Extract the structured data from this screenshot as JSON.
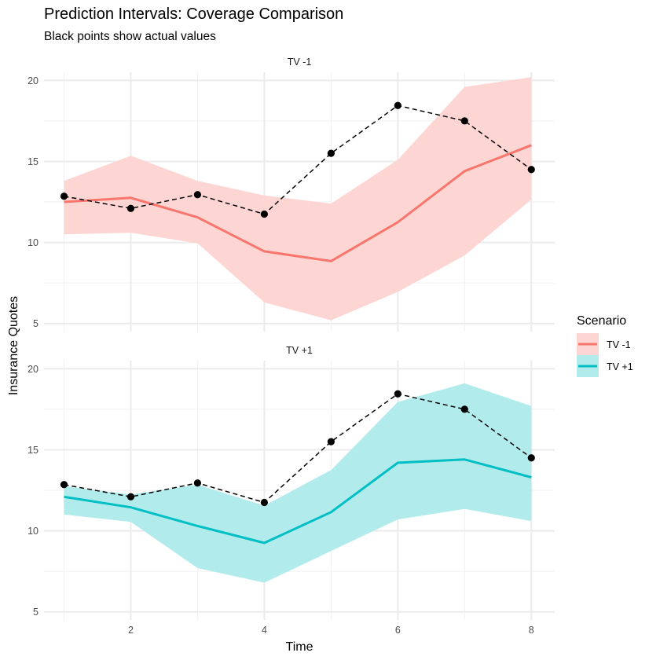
{
  "chart_data": {
    "type": "line",
    "title": "Prediction Intervals: Coverage Comparison",
    "subtitle": "Black points show actual values",
    "xlabel": "Time",
    "ylabel": "Insurance Quotes",
    "x": [
      1,
      2,
      3,
      4,
      5,
      6,
      7,
      8
    ],
    "xticks": [
      2,
      4,
      6,
      8
    ],
    "xlim": [
      0.7,
      8.35
    ],
    "yticks": [
      5,
      10,
      15,
      20
    ],
    "ylim": [
      4.5,
      20.5
    ],
    "legend_title": "Scenario",
    "legend_position": "right",
    "actual": [
      12.85,
      12.1,
      12.95,
      11.75,
      15.5,
      18.45,
      17.5,
      14.5
    ],
    "panels": [
      {
        "strip": "TV -1",
        "name": "TV -1",
        "color": "#F8766D",
        "fill": "#FDD5D3",
        "mean": [
          12.5,
          12.75,
          11.55,
          9.45,
          8.85,
          11.25,
          14.4,
          16.0
        ],
        "lower": [
          10.5,
          10.6,
          9.95,
          6.3,
          5.2,
          6.95,
          9.2,
          12.65
        ],
        "upper": [
          13.8,
          15.35,
          13.8,
          12.9,
          12.4,
          15.1,
          19.6,
          20.2
        ]
      },
      {
        "strip": "TV +1",
        "name": "TV +1",
        "color": "#00BFC4",
        "fill": "#B2EBEC",
        "mean": [
          12.1,
          11.45,
          10.3,
          9.25,
          11.15,
          14.2,
          14.4,
          13.3
        ],
        "lower": [
          11.0,
          10.55,
          7.7,
          6.8,
          8.75,
          10.7,
          11.35,
          10.6
        ],
        "upper": [
          12.75,
          12.25,
          12.85,
          11.55,
          13.75,
          17.95,
          19.1,
          17.7
        ]
      }
    ]
  }
}
